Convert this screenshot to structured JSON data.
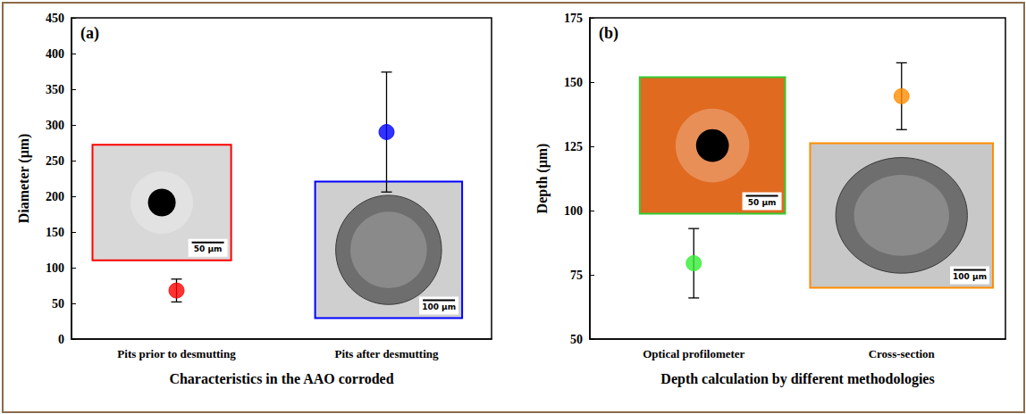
{
  "chart_data": [
    {
      "type": "scatter",
      "title": "(a)",
      "marker": "circle",
      "grid": false,
      "xlabel": "Characteristics in the AAO corroded",
      "ylabel": "Diameter (μm)",
      "categories": [
        "Pits prior to desmutting",
        "Pits after desmutting"
      ],
      "values": [
        68,
        290
      ],
      "errors": [
        16,
        84
      ],
      "colors": [
        "#ff0000",
        "#0000ff"
      ],
      "ylim": [
        0,
        450
      ],
      "yticks": [
        0,
        50,
        100,
        150,
        200,
        250,
        300,
        350,
        400,
        450
      ],
      "insets": [
        {
          "scale_bar": "50 μm",
          "color": "#ff0000"
        },
        {
          "scale_bar": "100 μm",
          "color": "#0000ff"
        }
      ]
    },
    {
      "type": "scatter",
      "title": "(b)",
      "marker": "circle",
      "grid": false,
      "xlabel": "Depth calculation by different methodologies",
      "ylabel": "Depth (μm)",
      "categories": [
        "Optical profilometer",
        "Cross-section"
      ],
      "values": [
        79.5,
        144.5
      ],
      "errors": [
        13.5,
        13
      ],
      "colors": [
        "#33ee33",
        "#ff8c00"
      ],
      "ylim": [
        50,
        175
      ],
      "yticks": [
        50,
        75,
        100,
        125,
        150,
        175
      ],
      "insets": [
        {
          "scale_bar": "50 μm",
          "color": "#33cc33"
        },
        {
          "scale_bar": "100 μm",
          "color": "#ff8c00"
        }
      ]
    }
  ]
}
